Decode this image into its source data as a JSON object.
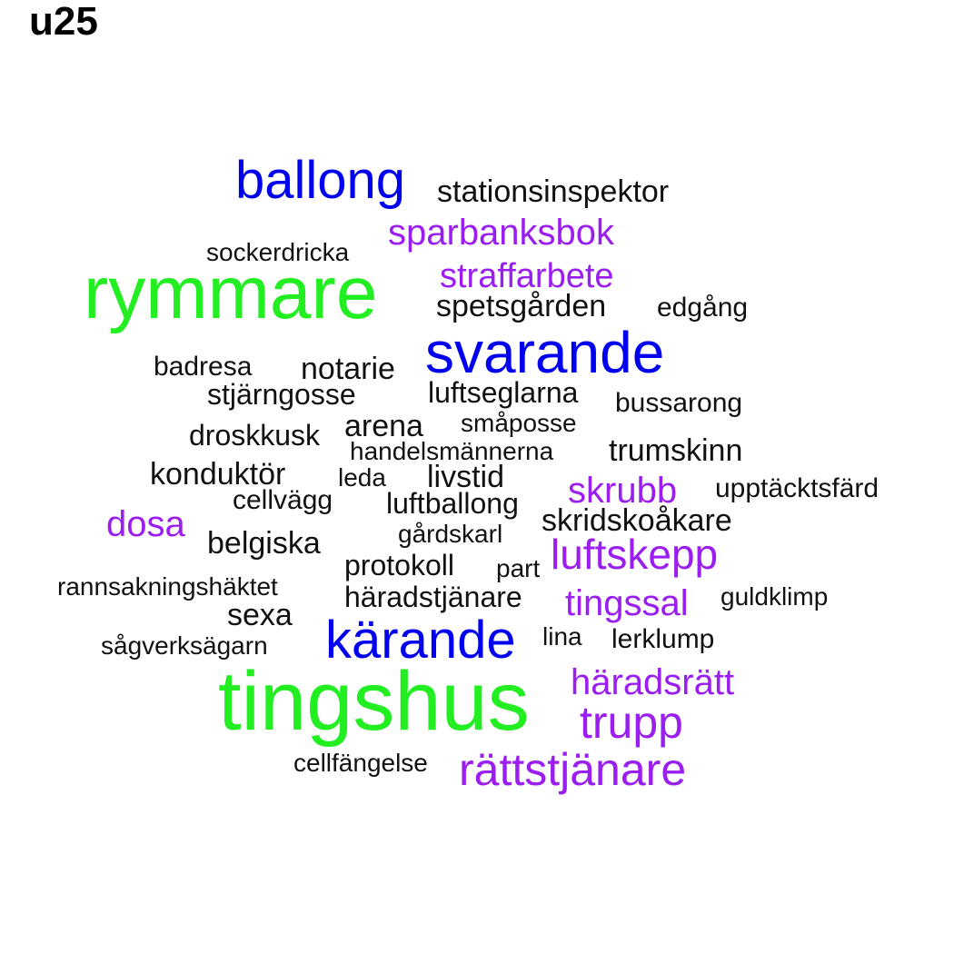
{
  "title": "u25",
  "colors": {
    "green": "#22ee22",
    "blue": "#0000ee",
    "purple": "#9b1ef0",
    "black": "#111111"
  },
  "words": [
    {
      "text": "tingshus",
      "color": "green"
    },
    {
      "text": "rymmare",
      "color": "green"
    },
    {
      "text": "svarande",
      "color": "blue"
    },
    {
      "text": "ballong",
      "color": "blue"
    },
    {
      "text": "kärande",
      "color": "blue"
    },
    {
      "text": "rättstjänare",
      "color": "purple"
    },
    {
      "text": "trupp",
      "color": "purple"
    },
    {
      "text": "luftskepp",
      "color": "purple"
    },
    {
      "text": "häradsrätt",
      "color": "purple"
    },
    {
      "text": "straffarbete",
      "color": "purple"
    },
    {
      "text": "sparbanksbok",
      "color": "purple"
    },
    {
      "text": "tingssal",
      "color": "purple"
    },
    {
      "text": "skrubb",
      "color": "purple"
    },
    {
      "text": "dosa",
      "color": "purple"
    },
    {
      "text": "stationsinspektor",
      "color": "black"
    },
    {
      "text": "sockerdricka",
      "color": "black"
    },
    {
      "text": "spetsgården",
      "color": "black"
    },
    {
      "text": "edgång",
      "color": "black"
    },
    {
      "text": "badresa",
      "color": "black"
    },
    {
      "text": "notarie",
      "color": "black"
    },
    {
      "text": "stjärngosse",
      "color": "black"
    },
    {
      "text": "luftseglarna",
      "color": "black"
    },
    {
      "text": "bussarong",
      "color": "black"
    },
    {
      "text": "småposse",
      "color": "black"
    },
    {
      "text": "arena",
      "color": "black"
    },
    {
      "text": "droskkusk",
      "color": "black"
    },
    {
      "text": "handelsmännerna",
      "color": "black"
    },
    {
      "text": "trumskinn",
      "color": "black"
    },
    {
      "text": "konduktör",
      "color": "black"
    },
    {
      "text": "leda",
      "color": "black"
    },
    {
      "text": "livstid",
      "color": "black"
    },
    {
      "text": "upptäcktsfärd",
      "color": "black"
    },
    {
      "text": "cellvägg",
      "color": "black"
    },
    {
      "text": "luftballong",
      "color": "black"
    },
    {
      "text": "skridskoåkare",
      "color": "black"
    },
    {
      "text": "gårdskarl",
      "color": "black"
    },
    {
      "text": "belgiska",
      "color": "black"
    },
    {
      "text": "protokoll",
      "color": "black"
    },
    {
      "text": "part",
      "color": "black"
    },
    {
      "text": "rannsakningshäktet",
      "color": "black"
    },
    {
      "text": "häradstjänare",
      "color": "black"
    },
    {
      "text": "guldklimp",
      "color": "black"
    },
    {
      "text": "sexa",
      "color": "black"
    },
    {
      "text": "sågverksägarn",
      "color": "black"
    },
    {
      "text": "lina",
      "color": "black"
    },
    {
      "text": "lerklump",
      "color": "black"
    },
    {
      "text": "cellfängelse",
      "color": "black"
    }
  ]
}
